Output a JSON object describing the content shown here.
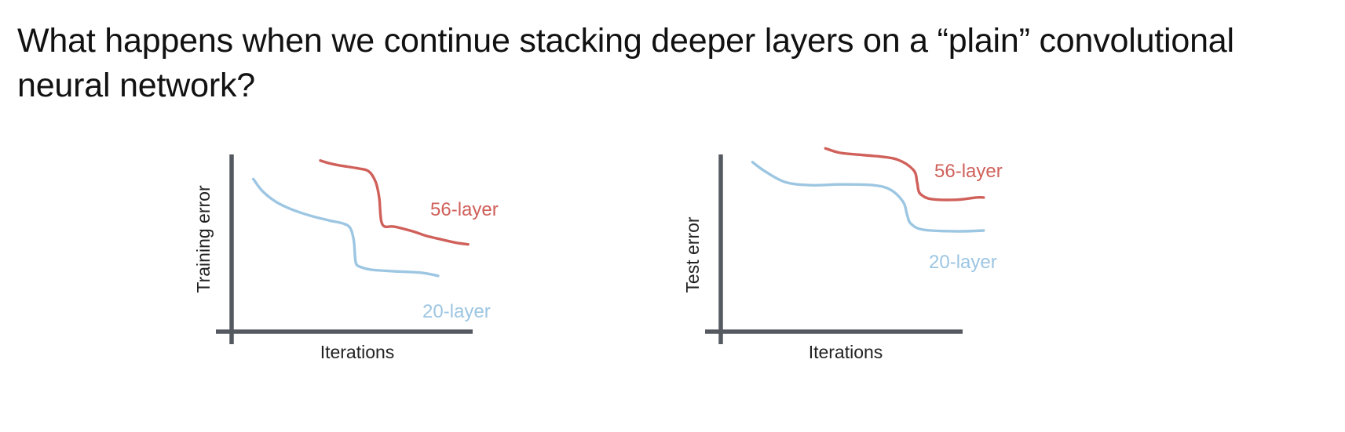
{
  "title": "What happens when we continue stacking deeper layers on a “plain” convolutional neural network?",
  "colors": {
    "layer56": "#d0605a",
    "layer20": "#9cc6e2",
    "axis": "#555a60"
  },
  "chart_data": [
    {
      "type": "line",
      "title": "",
      "xlabel": "Iterations",
      "ylabel": "Training error",
      "xlim": [
        0,
        100
      ],
      "ylim": [
        0,
        100
      ],
      "grid": false,
      "legend": "direct labels at right end of each curve",
      "series": [
        {
          "name": "56-layer",
          "color": "#d0605a",
          "x": [
            34,
            40,
            50,
            55,
            58,
            59.5,
            60,
            60.5,
            62,
            66,
            74,
            80,
            87,
            93,
            98
          ],
          "y": [
            96,
            93.5,
            91,
            89,
            82,
            72,
            62,
            56,
            53,
            53,
            50,
            47,
            44.5,
            42.5,
            41.5
          ]
        },
        {
          "name": "20-layer",
          "color": "#9cc6e2",
          "x": [
            5,
            9,
            15,
            22,
            30,
            38,
            44,
            47,
            48.5,
            49,
            49.5,
            51,
            56,
            66,
            78,
            85
          ],
          "y": [
            84,
            76,
            69,
            64,
            60,
            57,
            55,
            52,
            44,
            34,
            29,
            27,
            25,
            24,
            23,
            21
          ]
        }
      ]
    },
    {
      "type": "line",
      "title": "",
      "xlabel": "Iterations",
      "ylabel": "Test error",
      "xlim": [
        0,
        100
      ],
      "ylim": [
        0,
        100
      ],
      "grid": false,
      "legend": "direct labels at right end of each curve",
      "series": [
        {
          "name": "56-layer",
          "color": "#d0605a",
          "x": [
            36,
            42,
            52,
            64,
            71,
            72.5,
            73,
            74,
            78,
            88,
            96,
            99
          ],
          "y": [
            104,
            101,
            99.5,
            97,
            90,
            82,
            77,
            74,
            71,
            70.5,
            72,
            72
          ]
        },
        {
          "name": "20-layer",
          "color": "#9cc6e2",
          "x": [
            7,
            12,
            20,
            30,
            42,
            55,
            62,
            67,
            68.5,
            70,
            75,
            88,
            99
          ],
          "y": [
            95,
            89,
            82,
            80,
            80.5,
            80,
            77,
            69,
            61,
            55,
            51,
            50,
            50.5
          ]
        }
      ]
    }
  ]
}
